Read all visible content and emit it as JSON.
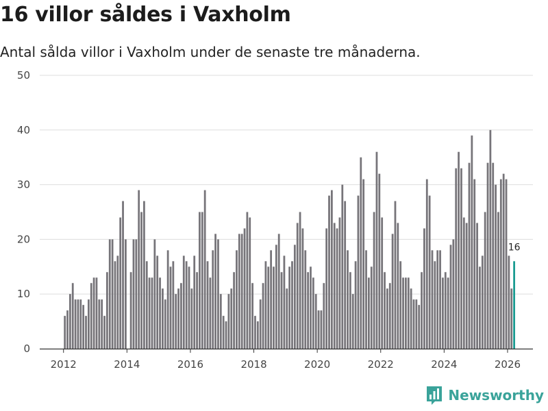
{
  "header": {
    "title": "16 villor såldes i Vaxholm",
    "subtitle": "Antal sålda villor i Vaxholm under de senaste tre månaderna."
  },
  "brand": {
    "name": "Newsworthy",
    "color": "#3aa39a",
    "icon": "newsworthy-logo-icon"
  },
  "colors": {
    "bar": "#767479",
    "highlight": "#1a9b91",
    "grid": "#dddddd",
    "axis": "#333333"
  },
  "chart_data": {
    "type": "bar",
    "ylim": [
      0,
      50
    ],
    "yticks": [
      0,
      10,
      20,
      30,
      40,
      50
    ],
    "xlim": [
      2011.25,
      2026.8
    ],
    "xticks": [
      2012,
      2014,
      2016,
      2018,
      2020,
      2022,
      2024,
      2026
    ],
    "start": "2012-01",
    "highlight_label": "16",
    "values": [
      6,
      7,
      10,
      12,
      9,
      9,
      9,
      8,
      6,
      9,
      12,
      13,
      13,
      9,
      9,
      6,
      14,
      20,
      20,
      16,
      17,
      24,
      27,
      20,
      0,
      14,
      20,
      20,
      29,
      25,
      27,
      16,
      13,
      13,
      20,
      17,
      13,
      11,
      9,
      18,
      15,
      16,
      10,
      11,
      12,
      17,
      16,
      15,
      11,
      17,
      14,
      25,
      25,
      29,
      16,
      13,
      18,
      21,
      20,
      10,
      6,
      5,
      10,
      11,
      14,
      18,
      21,
      21,
      22,
      25,
      24,
      12,
      6,
      5,
      9,
      12,
      16,
      15,
      18,
      15,
      19,
      21,
      14,
      17,
      11,
      15,
      16,
      19,
      23,
      25,
      22,
      18,
      14,
      15,
      13,
      10,
      7,
      7,
      12,
      22,
      28,
      29,
      23,
      22,
      24,
      30,
      27,
      18,
      14,
      10,
      16,
      28,
      35,
      31,
      18,
      13,
      15,
      25,
      36,
      32,
      24,
      14,
      11,
      12,
      21,
      27,
      23,
      16,
      13,
      13,
      13,
      11,
      9,
      9,
      8,
      14,
      22,
      31,
      28,
      18,
      16,
      18,
      18,
      13,
      14,
      13,
      19,
      20,
      33,
      36,
      33,
      24,
      23,
      34,
      39,
      31,
      23,
      15,
      17,
      25,
      34,
      40,
      34,
      30,
      25,
      31,
      32,
      31,
      17,
      11,
      16
    ]
  }
}
